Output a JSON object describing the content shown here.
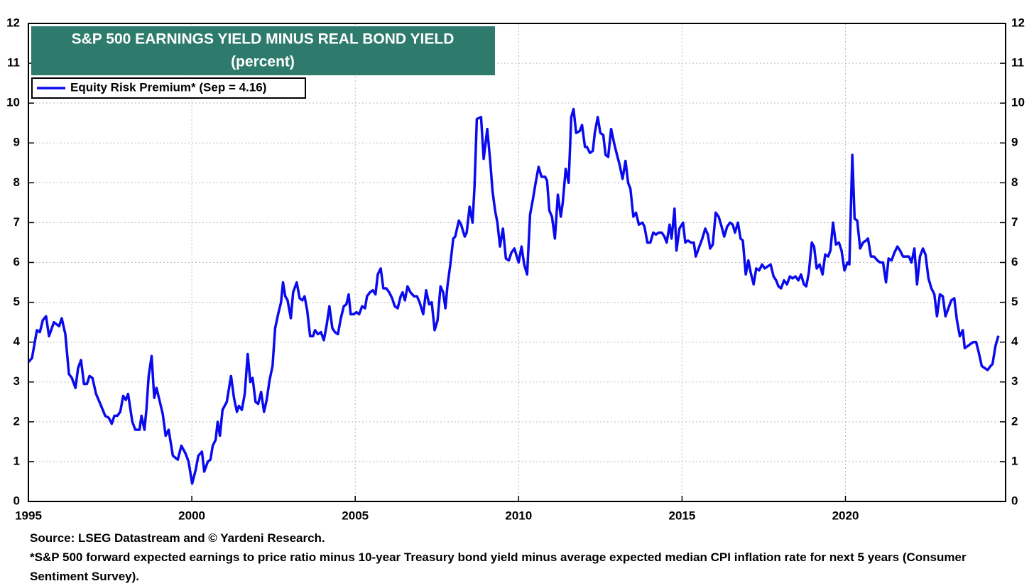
{
  "chart_data": {
    "type": "line",
    "title": "S&P 500 EARNINGS YIELD MINUS REAL BOND YIELD",
    "subtitle": "(percent)",
    "source": "Source: LSEG Datastream and © Yardeni Research.",
    "footnote": "*S&P 500 forward expected earnings to price ratio minus 10-year Treasury bond yield minus average expected median CPI inflation rate for next 5 years (Consumer Sentiment Survey).",
    "xlim": [
      1995,
      2024.9
    ],
    "xticks": [
      1995,
      2000,
      2005,
      2010,
      2015,
      2020
    ],
    "ylim": [
      0,
      12
    ],
    "yticks": [
      0,
      1,
      2,
      3,
      4,
      5,
      6,
      7,
      8,
      9,
      10,
      11,
      12
    ],
    "grid": true,
    "legend": "top-left",
    "x": [
      1995.0,
      1995.11,
      1995.26,
      1995.35,
      1995.44,
      1995.54,
      1995.63,
      1995.78,
      1995.94,
      1996.02,
      1996.13,
      1996.24,
      1996.33,
      1996.44,
      1996.52,
      1996.61,
      1996.7,
      1996.79,
      1996.87,
      1996.96,
      1997.07,
      1997.2,
      1997.35,
      1997.46,
      1997.55,
      1997.63,
      1997.72,
      1997.81,
      1997.9,
      1997.98,
      1998.05,
      1998.18,
      1998.27,
      1998.4,
      1998.46,
      1998.55,
      1998.61,
      1998.68,
      1998.77,
      1998.85,
      1998.92,
      1999.11,
      1999.2,
      1999.29,
      1999.42,
      1999.57,
      1999.68,
      1999.81,
      1999.9,
      2000.01,
      2000.12,
      2000.2,
      2000.31,
      2000.38,
      2000.49,
      2000.57,
      2000.64,
      2000.73,
      2000.79,
      2000.86,
      2000.94,
      2001.07,
      2001.2,
      2001.29,
      2001.38,
      2001.44,
      2001.53,
      2001.62,
      2001.71,
      2001.79,
      2001.86,
      2001.95,
      2002.03,
      2002.12,
      2002.21,
      2002.29,
      2002.38,
      2002.47,
      2002.55,
      2002.64,
      2002.73,
      2002.79,
      2002.86,
      2002.93,
      2003.03,
      2003.1,
      2003.21,
      2003.3,
      2003.38,
      2003.45,
      2003.53,
      2003.62,
      2003.71,
      2003.77,
      2003.86,
      2003.95,
      2004.04,
      2004.12,
      2004.21,
      2004.3,
      2004.38,
      2004.47,
      2004.56,
      2004.65,
      2004.73,
      2004.8,
      2004.86,
      2004.95,
      2005.04,
      2005.12,
      2005.21,
      2005.3,
      2005.36,
      2005.45,
      2005.54,
      2005.62,
      2005.69,
      2005.78,
      2005.86,
      2005.95,
      2006.04,
      2006.13,
      2006.21,
      2006.3,
      2006.39,
      2006.45,
      2006.52,
      2006.6,
      2006.69,
      2006.8,
      2006.89,
      2006.97,
      2007.08,
      2007.17,
      2007.26,
      2007.34,
      2007.43,
      2007.52,
      2007.61,
      2007.69,
      2007.76,
      2007.82,
      2007.91,
      2008.0,
      2008.06,
      2008.17,
      2008.24,
      2008.35,
      2008.41,
      2008.5,
      2008.59,
      2008.65,
      2008.72,
      2008.85,
      2008.93,
      2009.04,
      2009.13,
      2009.2,
      2009.28,
      2009.35,
      2009.43,
      2009.52,
      2009.61,
      2009.7,
      2009.78,
      2009.87,
      2010.0,
      2010.09,
      2010.17,
      2010.26,
      2010.35,
      2010.44,
      2010.52,
      2010.61,
      2010.7,
      2010.81,
      2010.87,
      2010.94,
      2011.02,
      2011.11,
      2011.2,
      2011.29,
      2011.35,
      2011.44,
      2011.53,
      2011.61,
      2011.68,
      2011.76,
      2011.87,
      2011.94,
      2012.03,
      2012.09,
      2012.18,
      2012.27,
      2012.33,
      2012.42,
      2012.5,
      2012.59,
      2012.66,
      2012.74,
      2012.83,
      2012.92,
      2013.01,
      2013.09,
      2013.18,
      2013.27,
      2013.35,
      2013.42,
      2013.51,
      2013.59,
      2013.68,
      2013.79,
      2013.85,
      2013.94,
      2014.03,
      2014.12,
      2014.2,
      2014.29,
      2014.38,
      2014.46,
      2014.53,
      2014.62,
      2014.68,
      2014.77,
      2014.83,
      2014.92,
      2015.03,
      2015.1,
      2015.18,
      2015.27,
      2015.36,
      2015.42,
      2015.53,
      2015.62,
      2015.71,
      2015.79,
      2015.86,
      2015.94,
      2016.03,
      2016.12,
      2016.21,
      2016.29,
      2016.38,
      2016.47,
      2016.55,
      2016.62,
      2016.71,
      2016.79,
      2016.86,
      2016.95,
      2017.03,
      2017.1,
      2017.19,
      2017.27,
      2017.36,
      2017.45,
      2017.53,
      2017.62,
      2017.71,
      2017.8,
      2017.88,
      2017.95,
      2018.03,
      2018.12,
      2018.21,
      2018.3,
      2018.38,
      2018.47,
      2018.56,
      2018.64,
      2018.73,
      2018.8,
      2018.88,
      2018.97,
      2019.04,
      2019.12,
      2019.21,
      2019.3,
      2019.38,
      2019.47,
      2019.54,
      2019.62,
      2019.71,
      2019.8,
      2019.88,
      2019.97,
      2020.06,
      2020.12,
      2020.21,
      2020.28,
      2020.36,
      2020.45,
      2020.54,
      2020.63,
      2020.69,
      2020.78,
      2020.87,
      2020.98,
      2021.06,
      2021.15,
      2021.24,
      2021.32,
      2021.41,
      2021.5,
      2021.59,
      2021.67,
      2021.76,
      2021.85,
      2021.94,
      2022.02,
      2022.11,
      2022.19,
      2022.28,
      2022.37,
      2022.45,
      2022.54,
      2022.63,
      2022.72,
      2022.8,
      2022.89,
      2022.98,
      2023.06,
      2023.15,
      2023.24,
      2023.33,
      2023.41,
      2023.5,
      2023.59,
      2023.65,
      2023.74,
      2023.82,
      2023.91,
      2024.0,
      2024.09,
      2024.17,
      2024.26,
      2024.35,
      2024.44,
      2024.5,
      2024.59,
      2024.68
    ],
    "series": [
      {
        "name": "Equity Risk Premium* (Sep = 4.16)",
        "color": "#0a0aee",
        "values": [
          3.5,
          3.6,
          4.3,
          4.25,
          4.55,
          4.65,
          4.15,
          4.5,
          4.4,
          4.6,
          4.2,
          3.2,
          3.1,
          2.85,
          3.35,
          3.55,
          2.95,
          2.95,
          3.15,
          3.1,
          2.7,
          2.45,
          2.15,
          2.1,
          1.95,
          2.15,
          2.15,
          2.25,
          2.65,
          2.55,
          2.7,
          2.0,
          1.8,
          1.8,
          2.15,
          1.8,
          2.3,
          3.15,
          3.65,
          2.6,
          2.85,
          2.2,
          1.65,
          1.8,
          1.15,
          1.05,
          1.4,
          1.2,
          1.0,
          0.45,
          0.8,
          1.15,
          1.25,
          0.75,
          1.0,
          1.05,
          1.4,
          1.55,
          2.0,
          1.65,
          2.3,
          2.5,
          3.15,
          2.6,
          2.25,
          2.4,
          2.3,
          2.7,
          3.7,
          3.0,
          3.1,
          2.5,
          2.45,
          2.75,
          2.25,
          2.55,
          3.05,
          3.4,
          4.35,
          4.7,
          5.0,
          5.5,
          5.15,
          5.05,
          4.6,
          5.25,
          5.5,
          5.1,
          5.05,
          5.15,
          4.8,
          4.15,
          4.15,
          4.3,
          4.2,
          4.25,
          4.05,
          4.4,
          4.9,
          4.35,
          4.25,
          4.2,
          4.6,
          4.9,
          4.95,
          5.2,
          4.7,
          4.7,
          4.75,
          4.7,
          4.9,
          4.85,
          5.15,
          5.25,
          5.3,
          5.2,
          5.7,
          5.85,
          5.35,
          5.35,
          5.25,
          5.1,
          4.9,
          4.85,
          5.15,
          5.25,
          5.05,
          5.4,
          5.25,
          5.15,
          5.15,
          5.0,
          4.7,
          5.3,
          4.95,
          5.0,
          4.3,
          4.55,
          5.4,
          5.25,
          4.85,
          5.4,
          5.95,
          6.6,
          6.65,
          7.05,
          6.95,
          6.65,
          6.75,
          7.4,
          7.0,
          7.9,
          9.6,
          9.65,
          8.6,
          9.35,
          8.55,
          7.8,
          7.3,
          7.0,
          6.4,
          6.85,
          6.1,
          6.05,
          6.25,
          6.35,
          6.0,
          6.4,
          5.95,
          5.7,
          7.2,
          7.6,
          8.0,
          8.4,
          8.15,
          8.15,
          8.05,
          7.3,
          7.15,
          6.6,
          7.7,
          7.15,
          7.5,
          8.35,
          8.0,
          9.65,
          9.85,
          9.25,
          9.3,
          9.45,
          8.9,
          8.9,
          8.75,
          8.8,
          9.25,
          9.65,
          9.25,
          9.2,
          8.7,
          8.65,
          9.35,
          9.0,
          8.7,
          8.45,
          8.1,
          8.55,
          8.0,
          7.85,
          7.15,
          7.25,
          6.95,
          7.0,
          6.9,
          6.5,
          6.5,
          6.75,
          6.7,
          6.75,
          6.75,
          6.65,
          6.5,
          6.95,
          6.6,
          7.35,
          6.3,
          6.85,
          7.0,
          6.5,
          6.55,
          6.5,
          6.5,
          6.15,
          6.4,
          6.6,
          6.85,
          6.7,
          6.35,
          6.45,
          7.25,
          7.15,
          6.9,
          6.65,
          6.9,
          7.0,
          6.95,
          6.75,
          7.0,
          6.6,
          6.55,
          5.7,
          6.05,
          5.75,
          5.45,
          5.85,
          5.8,
          5.95,
          5.85,
          5.9,
          5.95,
          5.65,
          5.55,
          5.4,
          5.35,
          5.55,
          5.45,
          5.65,
          5.6,
          5.65,
          5.55,
          5.7,
          5.45,
          5.4,
          5.75,
          6.5,
          6.4,
          5.85,
          5.95,
          5.7,
          6.2,
          6.15,
          6.3,
          7.0,
          6.45,
          6.5,
          6.3,
          5.8,
          6.0,
          5.95,
          8.7,
          7.1,
          7.05,
          6.35,
          6.5,
          6.55,
          6.6,
          6.15,
          6.15,
          6.05,
          6.0,
          6.0,
          5.5,
          6.1,
          6.05,
          6.25,
          6.4,
          6.3,
          6.15,
          6.15,
          6.15,
          6.0,
          6.35,
          5.45,
          6.15,
          6.35,
          6.2,
          5.6,
          5.35,
          5.2,
          4.65,
          5.2,
          5.15,
          4.65,
          4.85,
          5.05,
          5.1,
          4.55,
          4.15,
          4.3,
          3.85,
          3.9,
          3.95,
          4.0,
          4.0,
          3.7,
          3.4,
          3.35,
          3.3,
          3.4,
          3.45,
          3.9,
          4.16
        ]
      }
    ]
  }
}
